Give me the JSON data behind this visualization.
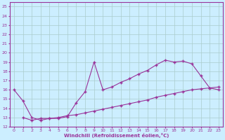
{
  "xlabel": "Windchill (Refroidissement éolien,°C)",
  "bg_color": "#cceeff",
  "grid_color": "#aacccc",
  "line_color": "#993399",
  "xlim": [
    -0.5,
    23.5
  ],
  "ylim": [
    12,
    25.5
  ],
  "xticks": [
    0,
    1,
    2,
    3,
    4,
    5,
    6,
    7,
    8,
    9,
    10,
    11,
    12,
    13,
    14,
    15,
    16,
    17,
    18,
    19,
    20,
    21,
    22,
    23
  ],
  "yticks": [
    12,
    13,
    14,
    15,
    16,
    17,
    18,
    19,
    20,
    21,
    22,
    23,
    24,
    25
  ],
  "series1_x": [
    0,
    1,
    2,
    3,
    4,
    5,
    6,
    7,
    8,
    9,
    10,
    11,
    12,
    13,
    14,
    15,
    16,
    17,
    18,
    19,
    20,
    21,
    22,
    23
  ],
  "series1_y": [
    16.0,
    14.8,
    13.0,
    12.7,
    12.9,
    12.9,
    13.1,
    14.6,
    15.8,
    19.0,
    16.0,
    16.3,
    16.8,
    17.2,
    17.7,
    18.1,
    18.7,
    19.2,
    19.0,
    19.1,
    18.8,
    17.5,
    16.2,
    16.0
  ],
  "series2_x": [
    1,
    2,
    3,
    4,
    5,
    6,
    7,
    8,
    9,
    10,
    11,
    12,
    13,
    14,
    15,
    16,
    17,
    18,
    19,
    20,
    21,
    22,
    23
  ],
  "series2_y": [
    13.0,
    12.7,
    12.9,
    12.9,
    13.0,
    13.2,
    13.3,
    13.5,
    13.7,
    13.9,
    14.1,
    14.3,
    14.5,
    14.7,
    14.9,
    15.2,
    15.4,
    15.6,
    15.8,
    16.0,
    16.1,
    16.2,
    16.3
  ]
}
